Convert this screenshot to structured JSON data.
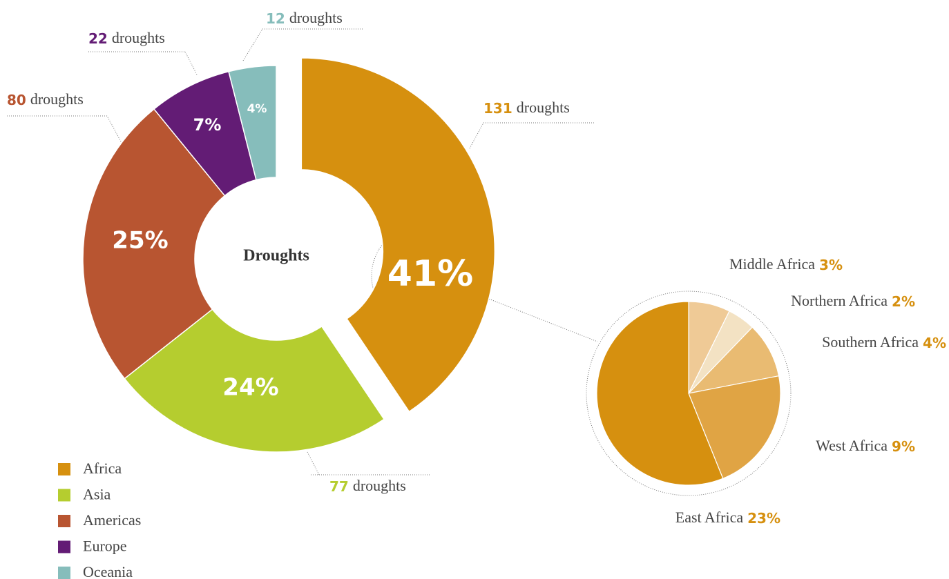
{
  "chart_data": [
    {
      "type": "donut",
      "center_label": "Droughts",
      "categories": [
        "Africa",
        "Asia",
        "Americas",
        "Europe",
        "Oceania"
      ],
      "values": [
        41,
        24,
        25,
        7,
        4
      ],
      "value_labels": [
        "41%",
        "24%",
        "25%",
        "7%",
        "4%"
      ],
      "counts": [
        131,
        77,
        80,
        22,
        12
      ],
      "count_unit": "droughts",
      "colors": [
        "#d6900f",
        "#b5cd2f",
        "#b85531",
        "#631c75",
        "#86bdbb"
      ],
      "legend": "bottom-left"
    },
    {
      "type": "pie",
      "categories": [
        "Middle Africa",
        "Northern Africa",
        "Southern Africa",
        "West Africa",
        "East Africa"
      ],
      "values": [
        3,
        2,
        4,
        9,
        23
      ],
      "value_labels": [
        "3%",
        "2%",
        "4%",
        "9%",
        "23%"
      ],
      "colors": [
        "#efca96",
        "#f3e2c3",
        "#e9bb72",
        "#e0a444",
        "#d6900f"
      ]
    }
  ]
}
